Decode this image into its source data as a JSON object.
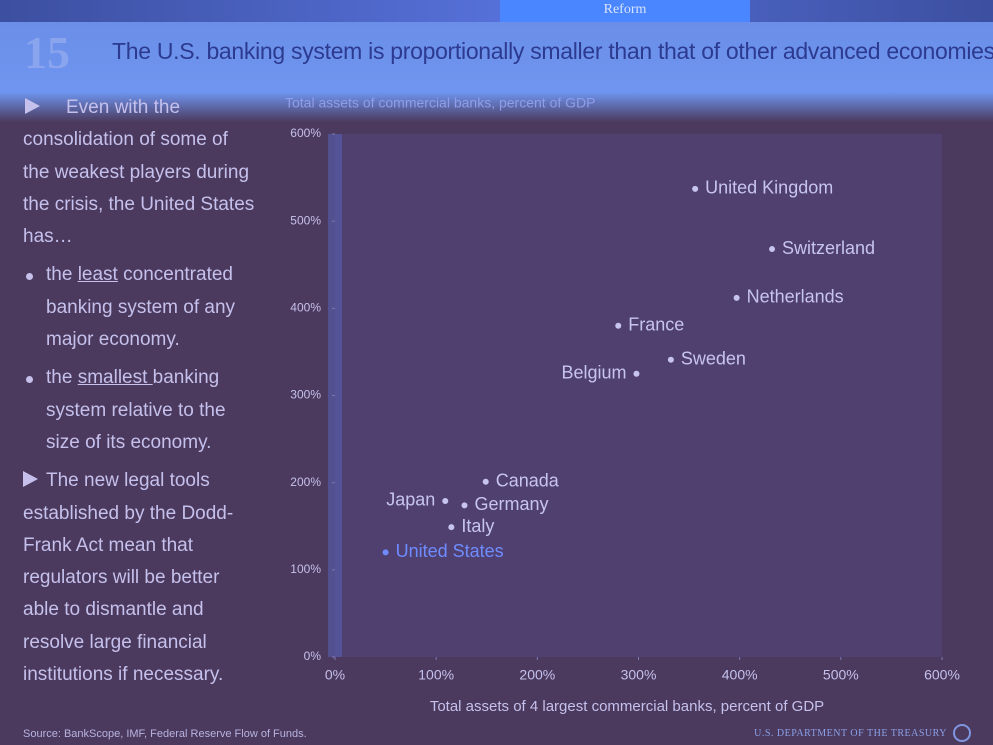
{
  "slide": {
    "number": "15",
    "title": "The U.S. banking system is proportionally smaller than that of other advanced economies",
    "nav": [
      "Reform"
    ],
    "body": [
      {
        "parts": [
          "Even with the consolidation of some of the weakest players during the crisis, the United States has…"
        ]
      },
      {
        "parts": [
          "the ",
          "least",
          " concentrated banking system of any major economy."
        ]
      },
      {
        "parts": [
          "the ",
          "smallest ",
          "banking system relative to the size of its economy."
        ]
      },
      {
        "parts": [
          "The new legal tools established by the Dodd-Frank Act mean that regulators will be better able to dismantle and resolve large financial institutions if necessary."
        ]
      }
    ],
    "source": "Source: BankScope, IMF, Federal Reserve Flow of Funds.",
    "footer": "U.S. DEPARTMENT OF THE TREASURY"
  },
  "chart_data": {
    "type": "scatter",
    "y_label": "Total assets of commercial banks, percent of GDP",
    "x_label": "Total assets of 4 largest commercial banks, percent of GDP",
    "labels": [
      "United Kingdom",
      "Switzerland",
      "Netherlands",
      "France",
      "Sweden",
      "Belgium",
      "Canada",
      "Japan",
      "Germany",
      "Italy",
      "United States"
    ],
    "x": [
      356,
      432,
      397,
      280,
      332,
      298,
      149,
      109,
      128,
      115,
      50
    ],
    "y": [
      537,
      468,
      412,
      380,
      341,
      325,
      201,
      179,
      174,
      149,
      120
    ],
    "colors": [
      "#c8c4f0",
      "#c8c4f0",
      "#c8c4f0",
      "#c8c4f0",
      "#c8c4f0",
      "#c8c4f0",
      "#c8c4f0",
      "#c8c4f0",
      "#c8c4f0",
      "#c8c4f0",
      "#6f8cff"
    ],
    "xlim": [
      0,
      600
    ],
    "ylim": [
      0,
      600
    ],
    "xticks": [
      {
        "value": 0,
        "label": "0%"
      },
      {
        "value": 100,
        "label": "100%"
      },
      {
        "value": 200,
        "label": "200%"
      },
      {
        "value": 300,
        "label": "300%"
      },
      {
        "value": 400,
        "label": "400%"
      },
      {
        "value": 500,
        "label": "500%"
      },
      {
        "value": 600,
        "label": "600%"
      }
    ],
    "yticks": [
      {
        "value": 0,
        "label": "0%"
      },
      {
        "value": 100,
        "label": "100%"
      },
      {
        "value": 200,
        "label": "200%"
      },
      {
        "value": 300,
        "label": "300%"
      },
      {
        "value": 400,
        "label": "400%"
      },
      {
        "value": 500,
        "label": "500%"
      },
      {
        "value": 600,
        "label": "600%"
      }
    ]
  }
}
